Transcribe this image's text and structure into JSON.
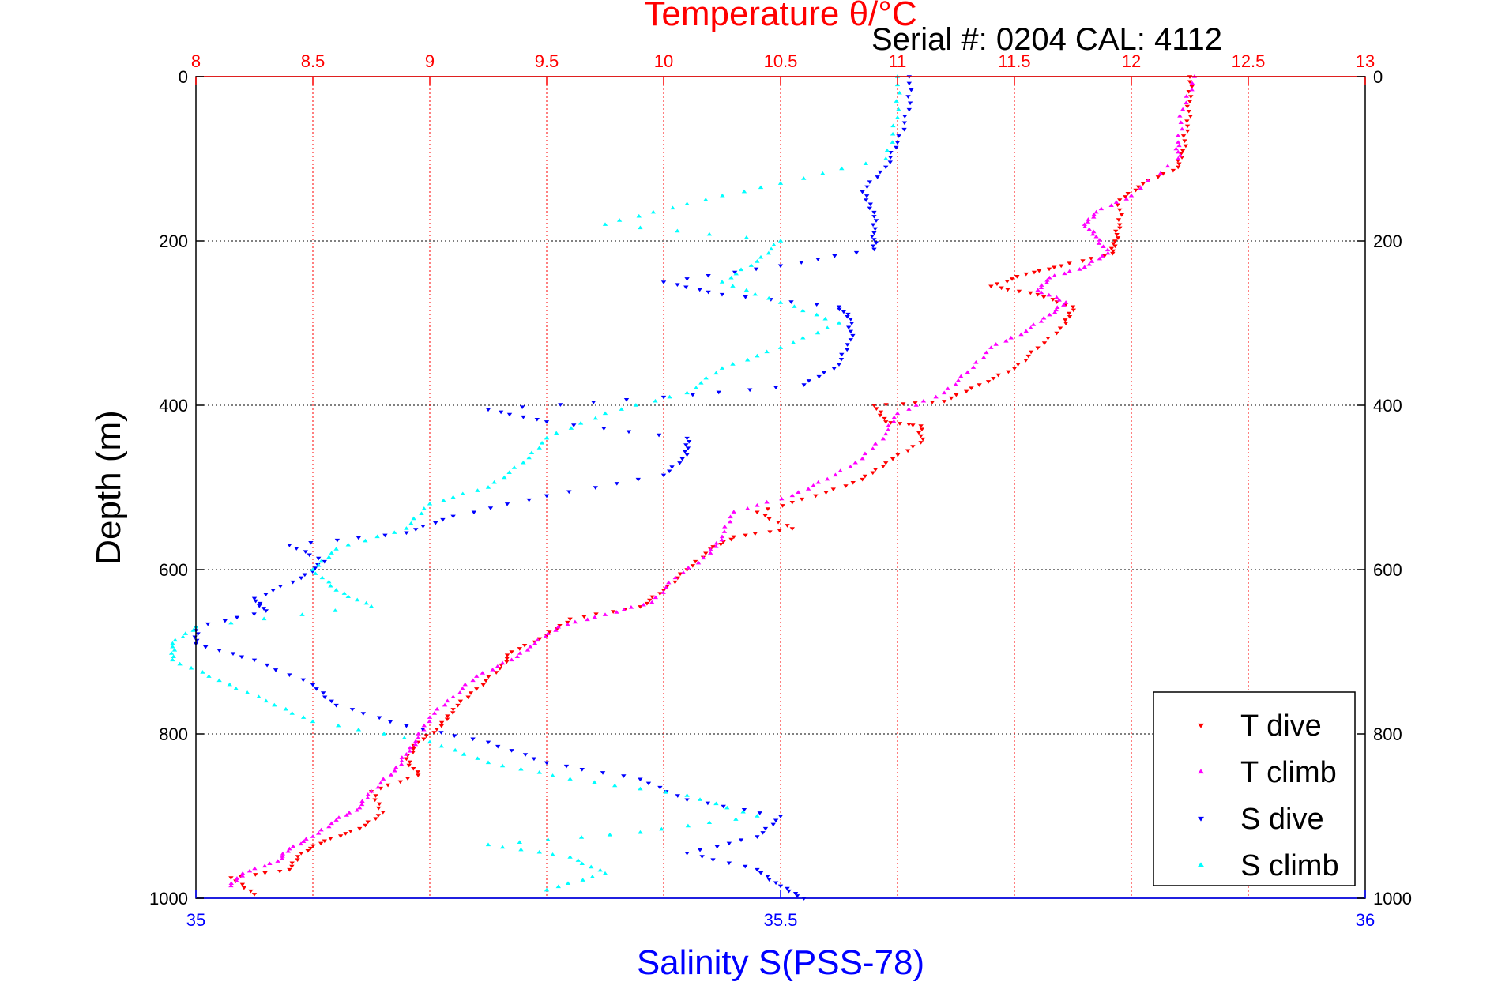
{
  "chart_data": {
    "type": "scatter",
    "title": "Temperature θ/°C",
    "subtitle": "Serial #: 0204  CAL: 4112",
    "ylabel": "Depth (m)",
    "xlabel_bottom": "Salinity S(PSS-78)",
    "ylim": [
      0,
      1000
    ],
    "y_reversed": true,
    "y_ticks": [
      "0",
      "200",
      "400",
      "600",
      "800",
      "1000"
    ],
    "temp_axis": {
      "range": [
        8,
        13
      ],
      "ticks": [
        "8",
        "8.5",
        "9",
        "9.5",
        "10",
        "10.5",
        "11",
        "11.5",
        "12",
        "12.5",
        "13"
      ],
      "color": "#ff0000"
    },
    "sal_axis": {
      "range": [
        35,
        36
      ],
      "ticks": [
        "35",
        "35.5",
        "36"
      ],
      "color": "#0000ff"
    },
    "grid": true,
    "legend_position": "bottom-right",
    "series": [
      {
        "name": "T dive",
        "axis": "temperature",
        "color": "#ff0000",
        "marker": "triangle-down",
        "points": [
          [
            12.25,
            0
          ],
          [
            12.25,
            30
          ],
          [
            12.24,
            60
          ],
          [
            12.22,
            90
          ],
          [
            12.2,
            110
          ],
          [
            12.05,
            130
          ],
          [
            11.95,
            150
          ],
          [
            11.95,
            180
          ],
          [
            11.93,
            200
          ],
          [
            11.92,
            215
          ],
          [
            11.7,
            230
          ],
          [
            11.55,
            240
          ],
          [
            11.4,
            255
          ],
          [
            11.6,
            265
          ],
          [
            11.75,
            280
          ],
          [
            11.72,
            300
          ],
          [
            11.6,
            330
          ],
          [
            11.5,
            355
          ],
          [
            11.35,
            375
          ],
          [
            11.2,
            395
          ],
          [
            10.9,
            400
          ],
          [
            10.95,
            420
          ],
          [
            11.1,
            425
          ],
          [
            11.1,
            445
          ],
          [
            10.95,
            470
          ],
          [
            10.85,
            490
          ],
          [
            10.65,
            510
          ],
          [
            10.4,
            530
          ],
          [
            10.55,
            550
          ],
          [
            10.3,
            560
          ],
          [
            10.2,
            575
          ],
          [
            10.1,
            600
          ],
          [
            10.0,
            625
          ],
          [
            9.9,
            645
          ],
          [
            9.6,
            660
          ],
          [
            9.5,
            680
          ],
          [
            9.35,
            700
          ],
          [
            9.3,
            720
          ],
          [
            9.2,
            745
          ],
          [
            9.1,
            770
          ],
          [
            9.05,
            790
          ],
          [
            8.95,
            810
          ],
          [
            8.9,
            830
          ],
          [
            8.95,
            850
          ],
          [
            8.75,
            870
          ],
          [
            8.8,
            895
          ],
          [
            8.7,
            915
          ],
          [
            8.55,
            930
          ],
          [
            8.45,
            945
          ],
          [
            8.4,
            965
          ],
          [
            8.15,
            975
          ],
          [
            8.25,
            995
          ]
        ]
      },
      {
        "name": "T climb",
        "axis": "temperature",
        "color": "#ff00ff",
        "marker": "triangle-up",
        "points": [
          [
            12.27,
            0
          ],
          [
            12.22,
            40
          ],
          [
            12.2,
            80
          ],
          [
            12.2,
            100
          ],
          [
            12.0,
            145
          ],
          [
            11.85,
            165
          ],
          [
            11.8,
            180
          ],
          [
            11.85,
            195
          ],
          [
            11.9,
            215
          ],
          [
            11.8,
            232
          ],
          [
            11.65,
            245
          ],
          [
            11.6,
            260
          ],
          [
            11.72,
            275
          ],
          [
            11.65,
            290
          ],
          [
            11.55,
            310
          ],
          [
            11.4,
            330
          ],
          [
            11.3,
            360
          ],
          [
            11.2,
            385
          ],
          [
            11.0,
            410
          ],
          [
            10.95,
            435
          ],
          [
            10.85,
            465
          ],
          [
            10.7,
            490
          ],
          [
            10.55,
            510
          ],
          [
            10.3,
            530
          ],
          [
            10.25,
            560
          ],
          [
            10.2,
            580
          ],
          [
            10.05,
            610
          ],
          [
            9.95,
            640
          ],
          [
            9.75,
            655
          ],
          [
            9.55,
            670
          ],
          [
            9.45,
            690
          ],
          [
            9.35,
            710
          ],
          [
            9.2,
            730
          ],
          [
            9.1,
            755
          ],
          [
            9.0,
            780
          ],
          [
            8.95,
            805
          ],
          [
            8.9,
            825
          ],
          [
            8.85,
            845
          ],
          [
            8.75,
            870
          ],
          [
            8.7,
            890
          ],
          [
            8.6,
            905
          ],
          [
            8.5,
            925
          ],
          [
            8.4,
            940
          ],
          [
            8.35,
            955
          ],
          [
            8.2,
            970
          ],
          [
            8.15,
            985
          ]
        ]
      },
      {
        "name": "S dive",
        "axis": "salinity",
        "color": "#0000ff",
        "marker": "triangle-down",
        "points": [
          [
            35.61,
            0
          ],
          [
            35.61,
            40
          ],
          [
            35.6,
            80
          ],
          [
            35.59,
            110
          ],
          [
            35.57,
            140
          ],
          [
            35.58,
            165
          ],
          [
            35.58,
            190
          ],
          [
            35.58,
            210
          ],
          [
            35.5,
            230
          ],
          [
            35.4,
            250
          ],
          [
            35.45,
            265
          ],
          [
            35.55,
            280
          ],
          [
            35.56,
            295
          ],
          [
            35.56,
            320
          ],
          [
            35.55,
            350
          ],
          [
            35.52,
            375
          ],
          [
            35.4,
            390
          ],
          [
            35.25,
            405
          ],
          [
            35.3,
            420
          ],
          [
            35.42,
            440
          ],
          [
            35.42,
            460
          ],
          [
            35.4,
            485
          ],
          [
            35.3,
            510
          ],
          [
            35.22,
            535
          ],
          [
            35.18,
            555
          ],
          [
            35.08,
            570
          ],
          [
            35.11,
            590
          ],
          [
            35.09,
            610
          ],
          [
            35.05,
            635
          ],
          [
            35.06,
            650
          ],
          [
            35.0,
            670
          ],
          [
            35.0,
            690
          ],
          [
            35.05,
            710
          ],
          [
            35.1,
            740
          ],
          [
            35.12,
            765
          ],
          [
            35.18,
            790
          ],
          [
            35.25,
            810
          ],
          [
            35.3,
            835
          ],
          [
            35.38,
            855
          ],
          [
            35.42,
            880
          ],
          [
            35.5,
            900
          ],
          [
            35.48,
            925
          ],
          [
            35.42,
            945
          ],
          [
            35.48,
            965
          ],
          [
            35.5,
            985
          ],
          [
            35.52,
            1000
          ]
        ]
      },
      {
        "name": "S climb",
        "axis": "salinity",
        "color": "#00ffff",
        "marker": "triangle-up",
        "points": [
          [
            35.6,
            0
          ],
          [
            35.6,
            50
          ],
          [
            35.59,
            100
          ],
          [
            35.5,
            130
          ],
          [
            35.42,
            155
          ],
          [
            35.35,
            180
          ],
          [
            35.5,
            200
          ],
          [
            35.48,
            225
          ],
          [
            35.45,
            250
          ],
          [
            35.5,
            275
          ],
          [
            35.55,
            300
          ],
          [
            35.5,
            330
          ],
          [
            35.45,
            355
          ],
          [
            35.42,
            385
          ],
          [
            35.35,
            410
          ],
          [
            35.3,
            440
          ],
          [
            35.28,
            470
          ],
          [
            35.25,
            500
          ],
          [
            35.2,
            520
          ],
          [
            35.18,
            550
          ],
          [
            35.12,
            575
          ],
          [
            35.1,
            600
          ],
          [
            35.12,
            625
          ],
          [
            35.15,
            645
          ],
          [
            35.0,
            670
          ],
          [
            34.98,
            690
          ],
          [
            34.98,
            710
          ],
          [
            35.02,
            735
          ],
          [
            35.06,
            760
          ],
          [
            35.1,
            785
          ],
          [
            35.2,
            810
          ],
          [
            35.25,
            835
          ],
          [
            35.32,
            855
          ],
          [
            35.42,
            875
          ],
          [
            35.48,
            900
          ],
          [
            35.38,
            920
          ],
          [
            35.25,
            935
          ],
          [
            35.32,
            950
          ],
          [
            35.35,
            970
          ],
          [
            35.3,
            990
          ]
        ]
      }
    ]
  }
}
